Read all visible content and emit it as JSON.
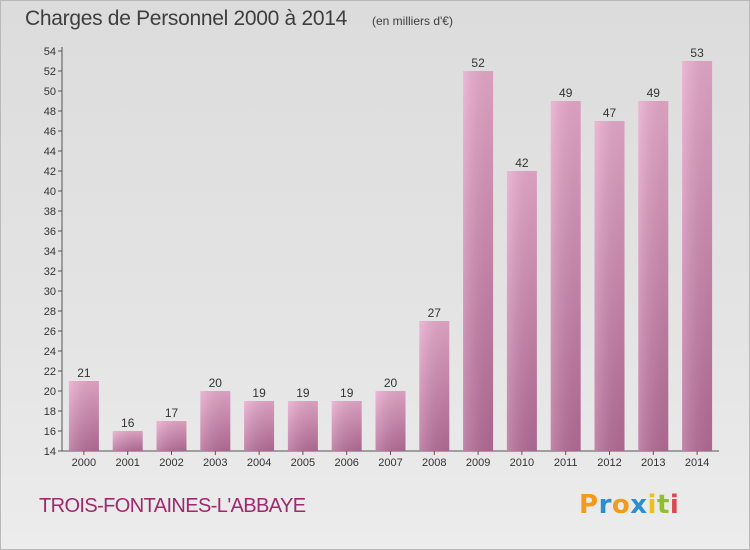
{
  "header": {
    "title": "Charges de Personnel 2000 à 2014",
    "subtitle": "(en milliers d'€)"
  },
  "footer": {
    "commune": "TROIS-FONTAINES-L'ABBAYE",
    "brand": {
      "letters": [
        "P",
        "r",
        "o",
        "x",
        "i",
        "t",
        "i"
      ],
      "colors": [
        "#f29a1a",
        "#2a8fd0",
        "#f29a1a",
        "#2a8fd0",
        "#e8c21b",
        "#8fbf2a",
        "#d9484f"
      ]
    }
  },
  "chart_data": {
    "type": "bar",
    "categories": [
      "2000",
      "2001",
      "2002",
      "2003",
      "2004",
      "2005",
      "2006",
      "2007",
      "2008",
      "2009",
      "2010",
      "2011",
      "2012",
      "2013",
      "2014"
    ],
    "values": [
      21,
      16,
      17,
      20,
      19,
      19,
      19,
      20,
      27,
      52,
      42,
      49,
      47,
      49,
      53
    ],
    "title": "Charges de Personnel 2000 à 2014",
    "xlabel": "",
    "ylabel": "",
    "ylim": [
      14,
      54
    ],
    "yticks": [
      14,
      16,
      18,
      20,
      22,
      24,
      26,
      28,
      30,
      32,
      34,
      36,
      38,
      40,
      42,
      44,
      46,
      48,
      50,
      52,
      54
    ],
    "grid": false,
    "data_labels": true,
    "bar_color": "#d98bb6"
  }
}
